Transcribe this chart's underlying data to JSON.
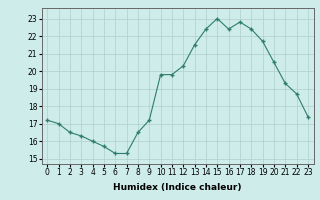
{
  "x": [
    0,
    1,
    2,
    3,
    4,
    5,
    6,
    7,
    8,
    9,
    10,
    11,
    12,
    13,
    14,
    15,
    16,
    17,
    18,
    19,
    20,
    21,
    22,
    23
  ],
  "y": [
    17.2,
    17.0,
    16.5,
    16.3,
    16.0,
    15.7,
    15.3,
    15.3,
    16.5,
    17.2,
    19.8,
    19.8,
    20.3,
    21.5,
    22.4,
    23.0,
    22.4,
    22.8,
    22.4,
    21.7,
    20.5,
    19.3,
    18.7,
    17.4
  ],
  "xlabel": "Humidex (Indice chaleur)",
  "ylabel": "",
  "xlim": [
    -0.5,
    23.5
  ],
  "ylim": [
    14.7,
    23.6
  ],
  "yticks": [
    15,
    16,
    17,
    18,
    19,
    20,
    21,
    22,
    23
  ],
  "xticks": [
    0,
    1,
    2,
    3,
    4,
    5,
    6,
    7,
    8,
    9,
    10,
    11,
    12,
    13,
    14,
    15,
    16,
    17,
    18,
    19,
    20,
    21,
    22,
    23
  ],
  "line_color": "#2e7d6e",
  "marker_color": "#2e7d6e",
  "bg_color": "#ceecea",
  "grid_color": "#b0ceca",
  "label_fontsize": 6.5,
  "tick_fontsize": 5.5
}
